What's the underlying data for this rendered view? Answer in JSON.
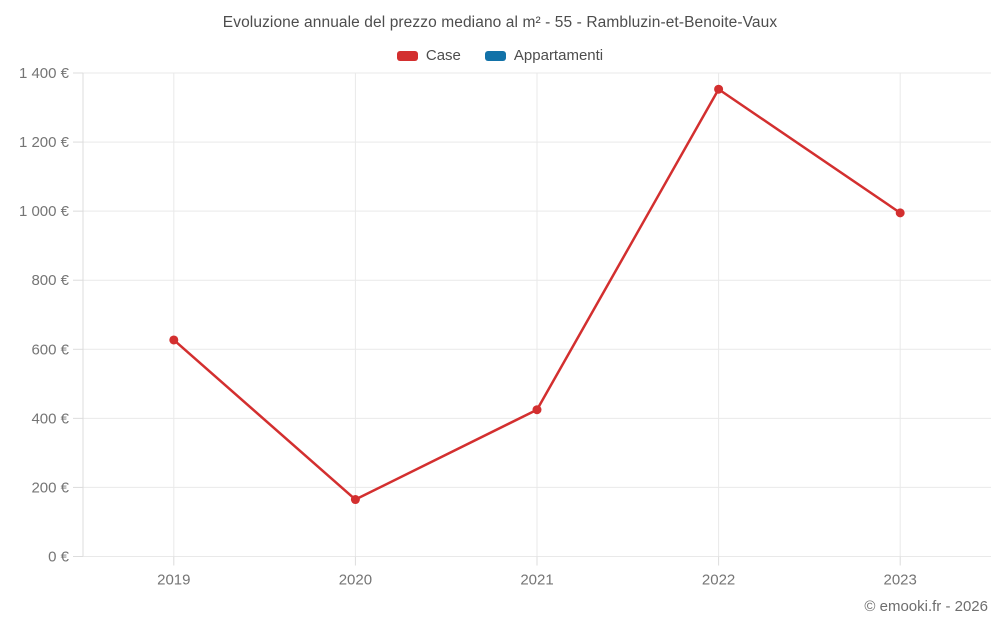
{
  "title": "Evoluzione annuale del prezzo mediano al m² - 55 - Rambluzin-et-Benoite-Vaux",
  "legend": {
    "items": [
      {
        "label": "Case",
        "color": "#d32f2f"
      },
      {
        "label": "Appartamenti",
        "color": "#1272a8"
      }
    ]
  },
  "footer": "© emooki.fr - 2026",
  "colors": {
    "grid": "#e9e9e9",
    "axis": "#dcdcdc",
    "case_red": "#d32f2f",
    "appartamenti_blue": "#1272a8",
    "tick_text": "#757575",
    "title_text": "#4d4d4d"
  },
  "chart_data": {
    "type": "line",
    "title": "Evoluzione annuale del prezzo mediano al m² - 55 - Rambluzin-et-Benoite-Vaux",
    "categories": [
      "2019",
      "2020",
      "2021",
      "2022",
      "2023"
    ],
    "series": [
      {
        "name": "Case",
        "color": "#d32f2f",
        "values": [
          627,
          165,
          425,
          1353,
          995
        ]
      },
      {
        "name": "Appartamenti",
        "color": "#1272a8",
        "values": []
      }
    ],
    "xlabel": "",
    "ylabel": "",
    "ylim": [
      0,
      1400
    ],
    "ytick_step": 200,
    "yticks": [
      {
        "value": 0,
        "label": "0 €"
      },
      {
        "value": 200,
        "label": "200 €"
      },
      {
        "value": 400,
        "label": "400 €"
      },
      {
        "value": 600,
        "label": "600 €"
      },
      {
        "value": 800,
        "label": "800 €"
      },
      {
        "value": 1000,
        "label": "1 000 €"
      },
      {
        "value": 1200,
        "label": "1 200 €"
      },
      {
        "value": 1400,
        "label": "1 400 €"
      }
    ],
    "grid": true,
    "legend_position": "top"
  }
}
